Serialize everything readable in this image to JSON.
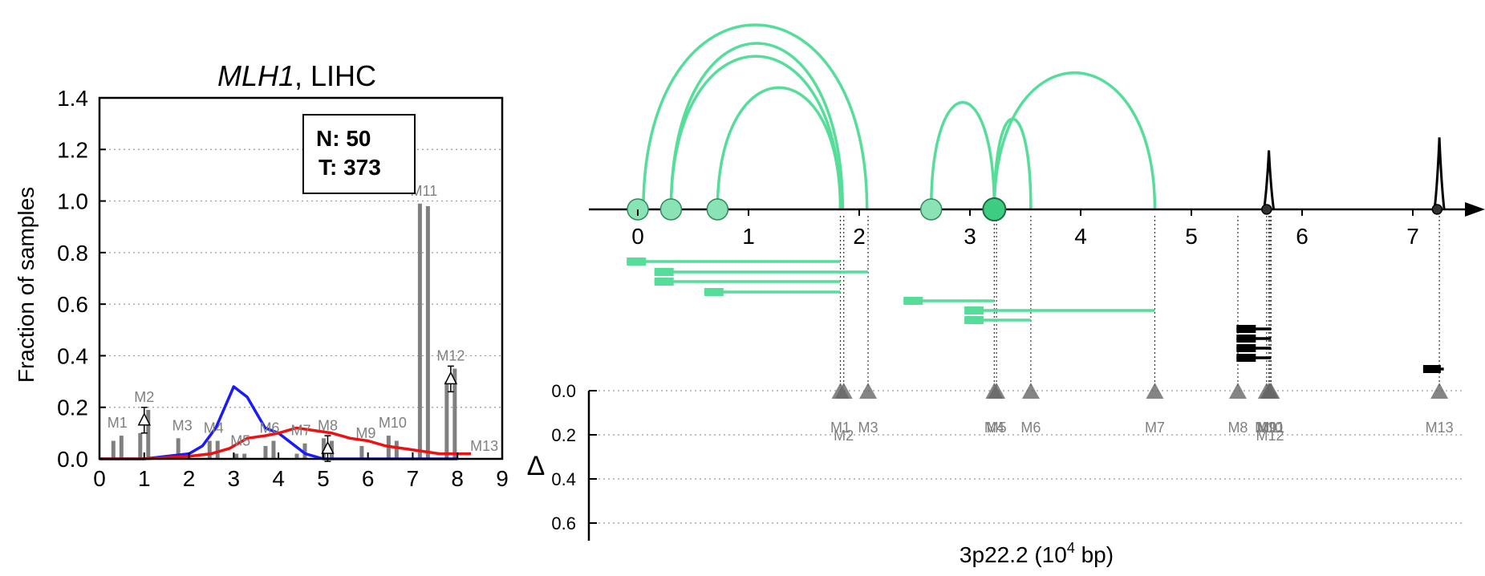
{
  "left_panel": {
    "title_italic": "MLH1",
    "title_rest": ", LIHC",
    "ylabel": "Fraction of samples",
    "xticks": [
      "0",
      "1",
      "2",
      "3",
      "4",
      "5",
      "6",
      "7",
      "8",
      "9"
    ],
    "yticks": [
      "0.0",
      "0.2",
      "0.4",
      "0.6",
      "0.8",
      "1.0",
      "1.2",
      "1.4"
    ],
    "stats_n": "N: 50",
    "stats_t": "T: 373"
  },
  "right_panel": {
    "xlabel_main": "3p22.2 (10",
    "xlabel_sup": "4",
    "xlabel_end": " bp)",
    "delta_label": "Δ",
    "xticks": [
      "0",
      "1",
      "2",
      "3",
      "4",
      "5",
      "6",
      "7"
    ],
    "delta_ticks": [
      "0.0",
      "0.2",
      "0.4",
      "0.6"
    ]
  },
  "chart_data": [
    {
      "type": "bar",
      "title": "MLH1, LIHC",
      "xlabel": "",
      "ylabel": "Fraction of samples",
      "xlim": [
        0,
        9
      ],
      "ylim": [
        0,
        1.4
      ],
      "grid": "horizontal dotted",
      "colors": {
        "normal": "#1a1aff",
        "tumor": "#ee1111",
        "bars": "#808080"
      },
      "modules": [
        {
          "name": "M1",
          "x": 0.4,
          "normal": 0.07,
          "tumor": 0.09,
          "delta": null
        },
        {
          "name": "M2",
          "x": 1.0,
          "normal": 0.1,
          "tumor": 0.19,
          "delta": 0.15
        },
        {
          "name": "M3",
          "x": 1.85,
          "normal": 0.08,
          "tumor": 0.0,
          "delta": null
        },
        {
          "name": "M4",
          "x": 2.55,
          "normal": 0.07,
          "tumor": 0.07,
          "delta": null
        },
        {
          "name": "M5",
          "x": 3.15,
          "normal": 0.02,
          "tumor": 0.02,
          "delta": null
        },
        {
          "name": "M6",
          "x": 3.8,
          "normal": 0.05,
          "tumor": 0.07,
          "delta": null
        },
        {
          "name": "M7",
          "x": 4.5,
          "normal": 0.02,
          "tumor": 0.06,
          "delta": null
        },
        {
          "name": "M8",
          "x": 5.1,
          "normal": 0.08,
          "tumor": 0.07,
          "delta": 0.04
        },
        {
          "name": "M9",
          "x": 5.95,
          "normal": 0.05,
          "tumor": 0.0,
          "delta": null
        },
        {
          "name": "M10",
          "x": 6.55,
          "normal": 0.09,
          "tumor": 0.07,
          "delta": null
        },
        {
          "name": "M11",
          "x": 7.25,
          "normal": 0.99,
          "tumor": 0.98,
          "delta": null
        },
        {
          "name": "M12",
          "x": 7.85,
          "normal": 0.3,
          "tumor": 0.35,
          "delta": 0.31
        },
        {
          "name": "M13",
          "x": 8.6,
          "normal": 0.0,
          "tumor": 0.0,
          "delta": null
        }
      ],
      "series": [
        {
          "color": "blue",
          "x": [
            0,
            1,
            1.5,
            2,
            2.3,
            2.6,
            3.0,
            3.3,
            3.7,
            4.0,
            4.3,
            4.6,
            5.0,
            6.0,
            8.0
          ],
          "y": [
            0,
            0,
            0.01,
            0.02,
            0.05,
            0.12,
            0.28,
            0.24,
            0.12,
            0.1,
            0.06,
            0.02,
            0,
            0,
            0
          ]
        },
        {
          "color": "red",
          "x": [
            0,
            1,
            2,
            2.5,
            2.9,
            3.3,
            3.7,
            4.0,
            4.4,
            4.8,
            5.2,
            5.6,
            6.0,
            6.4,
            6.8,
            7.2,
            7.6,
            8.0,
            8.3
          ],
          "y": [
            0,
            0,
            0.01,
            0.02,
            0.04,
            0.08,
            0.09,
            0.1,
            0.12,
            0.11,
            0.1,
            0.08,
            0.07,
            0.05,
            0.04,
            0.03,
            0.02,
            0.02,
            0.02
          ]
        }
      ]
    },
    {
      "type": "diagram",
      "xlabel": "3p22.2 (10^4 bp)",
      "xlim": [
        -0.4,
        7.5
      ],
      "color": "#55dd99",
      "exons": [
        {
          "x": 0.0,
          "size": "small"
        },
        {
          "x": 0.3,
          "size": "small"
        },
        {
          "x": 0.72,
          "size": "small"
        },
        {
          "x": 2.65,
          "size": "small"
        },
        {
          "x": 3.22,
          "size": "large"
        },
        {
          "x": 5.68,
          "size": "dot"
        },
        {
          "x": 7.22,
          "size": "dot"
        }
      ],
      "arcs": [
        {
          "from": 0.05,
          "to": 2.07,
          "height": 1.0
        },
        {
          "from": 0.3,
          "to": 1.85,
          "height": 0.9
        },
        {
          "from": 0.3,
          "to": 1.83,
          "height": 0.83
        },
        {
          "from": 0.72,
          "to": 1.83,
          "height": 0.66
        },
        {
          "from": 2.65,
          "to": 3.22,
          "height": 0.58
        },
        {
          "from": 3.22,
          "to": 3.55,
          "height": 0.49
        },
        {
          "from": 3.22,
          "to": 4.67,
          "height": 0.74
        }
      ],
      "peaks": [
        {
          "x": 5.7,
          "height": 0.32
        },
        {
          "x": 7.24,
          "height": 0.39
        }
      ],
      "isoforms_green": [
        {
          "start": -0.1,
          "end": 1.83
        },
        {
          "start": 0.15,
          "end": 2.08
        },
        {
          "start": 0.15,
          "end": 1.83
        },
        {
          "start": 0.6,
          "end": 1.83
        },
        {
          "start": 2.4,
          "end": 3.22
        },
        {
          "start": 2.95,
          "end": 4.67
        },
        {
          "start": 2.95,
          "end": 3.55
        }
      ],
      "isoforms_black": [
        {
          "start": 5.35,
          "end": 5.72
        },
        {
          "start": 5.35,
          "end": 5.72
        },
        {
          "start": 5.35,
          "end": 5.72
        },
        {
          "start": 5.35,
          "end": 5.72
        },
        {
          "start": 7.05,
          "end": 7.28
        }
      ],
      "delta_ylim": [
        0,
        0.6
      ],
      "delta_modules": [
        {
          "name": "M1",
          "x": 1.83,
          "delta": 0.0
        },
        {
          "name": "M2",
          "x": 1.86,
          "delta": 0.0
        },
        {
          "name": "M3",
          "x": 2.08,
          "delta": 0.0
        },
        {
          "name": "M4",
          "x": 3.22,
          "delta": 0.0
        },
        {
          "name": "M5",
          "x": 3.24,
          "delta": 0.0
        },
        {
          "name": "M6",
          "x": 3.55,
          "delta": 0.0
        },
        {
          "name": "M7",
          "x": 4.67,
          "delta": 0.0
        },
        {
          "name": "M8",
          "x": 5.42,
          "delta": 0.0
        },
        {
          "name": "M9",
          "x": 5.68,
          "delta": 0.0
        },
        {
          "name": "M10",
          "x": 5.7,
          "delta": 0.0
        },
        {
          "name": "M11",
          "x": 5.72,
          "delta": 0.0
        },
        {
          "name": "M12",
          "x": 5.71,
          "delta": 0.0
        },
        {
          "name": "M13",
          "x": 7.24,
          "delta": 0.0
        }
      ]
    }
  ]
}
